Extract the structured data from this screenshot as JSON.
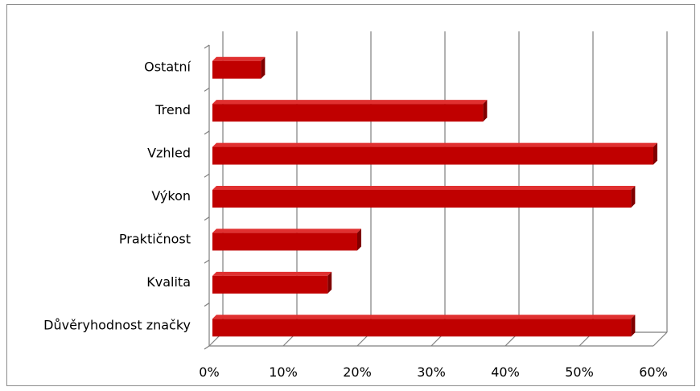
{
  "chart_data": {
    "type": "bar",
    "orientation": "horizontal",
    "style": "3d",
    "categories": [
      "Důvěryhodnost značky",
      "Kvalita",
      "Praktičnost",
      "Výkon",
      "Vzhled",
      "Trend",
      "Ostatní"
    ],
    "series": [
      {
        "values": [
          57,
          16,
          20,
          57,
          60,
          37,
          7
        ]
      }
    ],
    "xlim": [
      0,
      60
    ],
    "x_ticks": [
      "0%",
      "10%",
      "20%",
      "30%",
      "40%",
      "50%",
      "60%"
    ],
    "grid": "vertical",
    "legend": "none",
    "colors": {
      "bar_front": "#c00000",
      "bar_top": "#e03030",
      "bar_side": "#800000",
      "grid": "#7f7f7f"
    }
  }
}
